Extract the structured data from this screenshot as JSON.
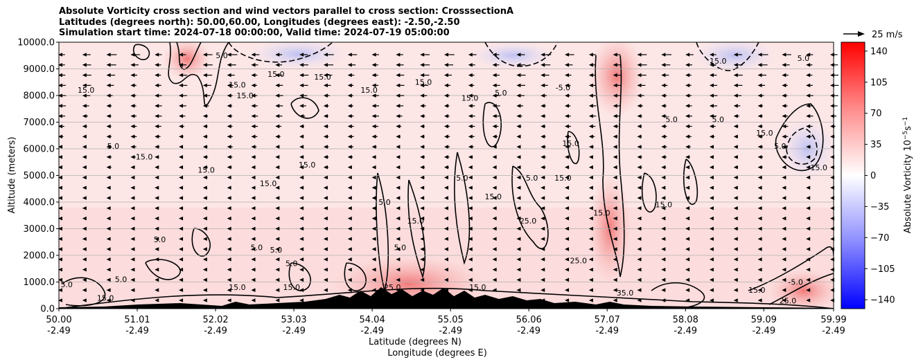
{
  "chart_data": {
    "type": "heatmap",
    "title": [
      "Absolute Vorticity cross section and wind vectors parallel to cross section: CrosssectionA",
      "Latitudes (degrees north): 50.00,60.00, Longitudes (degrees east): -2.50,-2.50",
      "Simulation start time: 2024-07-18 00:00:00, Valid time: 2024-07-19 05:00:00"
    ],
    "xlabel": [
      "Latitude (degrees N)",
      "Longitude (degrees E)"
    ],
    "ylabel": "Altitude (meters)",
    "xlim": [
      50.0,
      59.99
    ],
    "ylim": [
      0,
      10000
    ],
    "x_ticks": [
      {
        "lat": "50.00",
        "lon": "-2.49"
      },
      {
        "lat": "51.01",
        "lon": "-2.49"
      },
      {
        "lat": "52.02",
        "lon": "-2.49"
      },
      {
        "lat": "53.03",
        "lon": "-2.49"
      },
      {
        "lat": "54.04",
        "lon": "-2.49"
      },
      {
        "lat": "55.05",
        "lon": "-2.49"
      },
      {
        "lat": "56.06",
        "lon": "-2.49"
      },
      {
        "lat": "57.07",
        "lon": "-2.49"
      },
      {
        "lat": "58.08",
        "lon": "-2.49"
      },
      {
        "lat": "59.09",
        "lon": "-2.49"
      },
      {
        "lat": "59.99",
        "lon": "-2.49"
      }
    ],
    "y_ticks": [
      "0.0",
      "1000.0",
      "2000.0",
      "3000.0",
      "4000.0",
      "5000.0",
      "6000.0",
      "7000.0",
      "8000.0",
      "9000.0",
      "10000.0"
    ],
    "y_tick_values": [
      0,
      1000,
      2000,
      3000,
      4000,
      5000,
      6000,
      7000,
      8000,
      9000,
      10000
    ],
    "grid": "horizontal",
    "colorbar": {
      "label": "Absolute Vorticity 10",
      "label_exp": "−5",
      "label_unit": "s",
      "label_unit_exp": "−1",
      "range": [
        -150,
        150
      ],
      "ticks": [
        "140",
        "105",
        "70",
        "35",
        "0",
        "−35",
        "−70",
        "−105",
        "−140"
      ],
      "tick_values": [
        140,
        105,
        70,
        35,
        0,
        -35,
        -70,
        -105,
        -140
      ],
      "colors": {
        "low": "#0000ff",
        "mid": "#ffffff",
        "high": "#ff0000"
      }
    },
    "quiver_key": {
      "label": "25 m/s",
      "speed": 25
    },
    "contour_levels": [
      -5.0,
      5.0,
      15.0,
      25.0,
      35.0
    ],
    "contour_labels": [
      {
        "text": "5.0",
        "lat": 50.1,
        "alt": 800
      },
      {
        "text": "15.0",
        "lat": 50.6,
        "alt": 300
      },
      {
        "text": "5.0",
        "lat": 50.8,
        "alt": 1000
      },
      {
        "text": "15.0",
        "lat": 50.35,
        "alt": 8100
      },
      {
        "text": "5.0",
        "lat": 50.7,
        "alt": 6000
      },
      {
        "text": "15.0",
        "lat": 51.1,
        "alt": 5600
      },
      {
        "text": "15.0",
        "lat": 51.9,
        "alt": 5100
      },
      {
        "text": "15.0",
        "lat": 52.7,
        "alt": 4600
      },
      {
        "text": "5.0",
        "lat": 51.3,
        "alt": 2500
      },
      {
        "text": "5.0",
        "lat": 52.1,
        "alt": 9400
      },
      {
        "text": "15.0",
        "lat": 52.3,
        "alt": 8300
      },
      {
        "text": "15.0",
        "lat": 52.4,
        "alt": 7900
      },
      {
        "text": "15.0",
        "lat": 52.8,
        "alt": 8700
      },
      {
        "text": "5.0",
        "lat": 52.55,
        "alt": 2200
      },
      {
        "text": "5.0",
        "lat": 52.8,
        "alt": 2100
      },
      {
        "text": "15.0",
        "lat": 52.3,
        "alt": 700
      },
      {
        "text": "15.0",
        "lat": 53.4,
        "alt": 8600
      },
      {
        "text": "5.0",
        "lat": 53.0,
        "alt": 1600
      },
      {
        "text": "15.0",
        "lat": 54.0,
        "alt": 8100
      },
      {
        "text": "15.0",
        "lat": 53.2,
        "alt": 5300
      },
      {
        "text": "15.0",
        "lat": 54.7,
        "alt": 8400
      },
      {
        "text": "15.0",
        "lat": 55.3,
        "alt": 7800
      },
      {
        "text": "5.0",
        "lat": 55.7,
        "alt": 8000
      },
      {
        "text": "-5.0",
        "lat": 56.5,
        "alt": 8200
      },
      {
        "text": "5.0",
        "lat": 56.1,
        "alt": 4800
      },
      {
        "text": "15.0",
        "lat": 55.6,
        "alt": 4100
      },
      {
        "text": "5.0",
        "lat": 55.2,
        "alt": 4800
      },
      {
        "text": "15.0",
        "lat": 54.6,
        "alt": 3200
      },
      {
        "text": "5.0",
        "lat": 54.2,
        "alt": 3900
      },
      {
        "text": "5.0",
        "lat": 54.4,
        "alt": 2200
      },
      {
        "text": "25.0",
        "lat": 56.05,
        "alt": 3200
      },
      {
        "text": "15.0",
        "lat": 56.5,
        "alt": 4800
      },
      {
        "text": "15.0",
        "lat": 56.6,
        "alt": 6100
      },
      {
        "text": "15.0",
        "lat": 57.8,
        "alt": 3800
      },
      {
        "text": "15.0",
        "lat": 57.0,
        "alt": 3500
      },
      {
        "text": "5.0",
        "lat": 57.9,
        "alt": 7000
      },
      {
        "text": "5.0",
        "lat": 58.5,
        "alt": 7000
      },
      {
        "text": "15.0",
        "lat": 59.1,
        "alt": 6500
      },
      {
        "text": "5.0",
        "lat": 59.3,
        "alt": 6000
      },
      {
        "text": "15.0",
        "lat": 59.8,
        "alt": 5200
      },
      {
        "text": "15.0",
        "lat": 58.5,
        "alt": 9200
      },
      {
        "text": "5.0",
        "lat": 59.6,
        "alt": 9300
      },
      {
        "text": "-5.0",
        "lat": 59.5,
        "alt": 900
      },
      {
        "text": "15.0",
        "lat": 59.0,
        "alt": 600
      },
      {
        "text": "25.0",
        "lat": 59.4,
        "alt": 200
      },
      {
        "text": "35.0",
        "lat": 57.3,
        "alt": 500
      },
      {
        "text": "25.0",
        "lat": 56.7,
        "alt": 1700
      },
      {
        "text": "15.0",
        "lat": 55.4,
        "alt": 700
      },
      {
        "text": "25.0",
        "lat": 54.3,
        "alt": 700
      },
      {
        "text": "15.0",
        "lat": 53.0,
        "alt": 700
      }
    ]
  }
}
